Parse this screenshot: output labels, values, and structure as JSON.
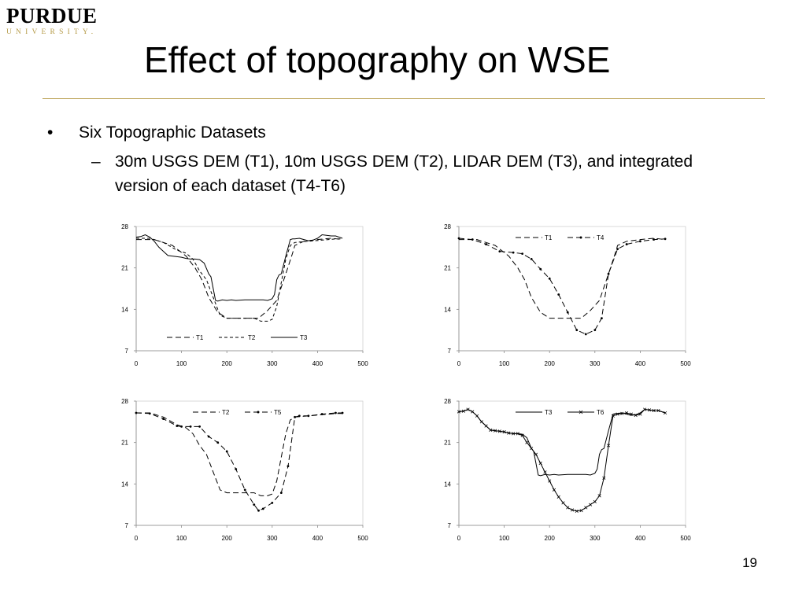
{
  "logo": {
    "word": "PURDUE",
    "sub": "UNIVERSITY."
  },
  "title": "Effect of topography on WSE",
  "bullets": {
    "level1_mark": "•",
    "level1": "Six Topographic Datasets",
    "level2_mark": "–",
    "level2": "30m USGS DEM (T1), 10m USGS DEM (T2), LIDAR DEM (T3), and integrated version of each dataset (T4-T6)"
  },
  "page_number": "19",
  "chart_data": [
    {
      "type": "line",
      "xlim": [
        0,
        500
      ],
      "ylim": [
        7,
        28
      ],
      "xticks": [
        0,
        100,
        200,
        300,
        400,
        500
      ],
      "yticks": [
        7,
        14,
        21,
        28
      ],
      "grid": false,
      "legend": "bottom-center",
      "series": [
        {
          "name": "T1",
          "style": "dash-long",
          "marker": "none",
          "x": [
            0,
            40,
            80,
            110,
            130,
            145,
            160,
            180,
            200,
            250,
            270,
            290,
            310,
            330,
            345,
            350,
            370,
            400,
            430,
            455
          ],
          "y": [
            25.8,
            25.8,
            24.8,
            23.0,
            21.0,
            19.0,
            16.0,
            13.5,
            12.5,
            12.5,
            12.5,
            13.8,
            15.5,
            20.0,
            23.5,
            24.8,
            25.5,
            25.8,
            26.0,
            25.8
          ]
        },
        {
          "name": "T2",
          "style": "dash-short",
          "marker": "none",
          "x": [
            0,
            30,
            60,
            90,
            110,
            125,
            140,
            155,
            170,
            185,
            200,
            230,
            260,
            275,
            290,
            300,
            310,
            320,
            330,
            340,
            350,
            380,
            410,
            440,
            455
          ],
          "y": [
            26.0,
            26.0,
            25.3,
            24.0,
            23.5,
            22.5,
            20.5,
            19.0,
            16.0,
            13.0,
            12.5,
            12.5,
            12.5,
            12.0,
            12.0,
            12.3,
            14.5,
            18.5,
            22.5,
            24.8,
            25.3,
            25.5,
            25.7,
            25.9,
            25.9
          ]
        },
        {
          "name": "T3",
          "style": "solid",
          "marker": "none",
          "x": [
            0,
            10,
            20,
            30,
            40,
            50,
            60,
            70,
            80,
            90,
            100,
            110,
            120,
            130,
            140,
            150,
            160,
            165,
            170,
            175,
            180,
            190,
            200,
            210,
            220,
            240,
            260,
            280,
            290,
            300,
            305,
            310,
            315,
            320,
            330,
            340,
            345,
            350,
            360,
            370,
            380,
            390,
            400,
            410,
            420,
            430,
            440,
            455
          ],
          "y": [
            26.2,
            26.3,
            26.6,
            26.2,
            25.5,
            24.5,
            23.8,
            23.1,
            23.0,
            22.9,
            22.8,
            22.6,
            22.5,
            22.5,
            22.4,
            21.8,
            20.0,
            19.5,
            17.5,
            15.5,
            15.4,
            15.6,
            15.5,
            15.6,
            15.5,
            15.6,
            15.6,
            15.6,
            15.5,
            15.8,
            16.5,
            19.0,
            19.8,
            20.0,
            23.0,
            25.8,
            25.9,
            25.9,
            26.0,
            25.8,
            25.6,
            25.7,
            26.0,
            26.6,
            26.5,
            26.4,
            26.4,
            26.0
          ]
        }
      ]
    },
    {
      "type": "line",
      "xlim": [
        0,
        500
      ],
      "ylim": [
        7,
        28
      ],
      "xticks": [
        0,
        100,
        200,
        300,
        400,
        500
      ],
      "yticks": [
        7,
        14,
        21,
        28
      ],
      "grid": false,
      "legend": "top-center",
      "series": [
        {
          "name": "T1",
          "style": "dash-long",
          "marker": "none",
          "x": [
            0,
            40,
            80,
            110,
            130,
            145,
            160,
            180,
            200,
            250,
            270,
            290,
            310,
            330,
            345,
            350,
            370,
            400,
            430,
            455
          ],
          "y": [
            25.8,
            25.8,
            24.8,
            23.0,
            21.0,
            19.0,
            16.0,
            13.5,
            12.5,
            12.5,
            12.5,
            13.8,
            15.5,
            20.0,
            23.5,
            24.8,
            25.5,
            25.8,
            26.0,
            25.8
          ]
        },
        {
          "name": "T4",
          "style": "dash-long",
          "marker": "dot",
          "x": [
            0,
            30,
            60,
            90,
            120,
            140,
            160,
            180,
            200,
            220,
            240,
            260,
            280,
            300,
            315,
            330,
            350,
            370,
            400,
            430,
            455
          ],
          "y": [
            26.0,
            25.8,
            25.0,
            23.8,
            23.6,
            23.4,
            22.5,
            20.8,
            19.2,
            16.5,
            13.5,
            10.5,
            9.8,
            10.5,
            12.5,
            20.0,
            24.2,
            25.0,
            25.5,
            25.8,
            25.9
          ]
        }
      ]
    },
    {
      "type": "line",
      "xlim": [
        0,
        500
      ],
      "ylim": [
        7,
        28
      ],
      "xticks": [
        0,
        100,
        200,
        300,
        400,
        500
      ],
      "yticks": [
        7,
        14,
        21,
        28
      ],
      "grid": false,
      "legend": "top-center",
      "series": [
        {
          "name": "T2",
          "style": "dash-long",
          "marker": "none",
          "x": [
            0,
            30,
            60,
            90,
            110,
            125,
            140,
            155,
            170,
            185,
            200,
            230,
            260,
            275,
            290,
            300,
            310,
            320,
            330,
            340,
            350,
            380,
            410,
            440,
            455
          ],
          "y": [
            26.0,
            26.0,
            25.3,
            24.0,
            23.5,
            22.5,
            20.5,
            19.0,
            16.0,
            13.0,
            12.5,
            12.5,
            12.5,
            12.0,
            12.0,
            12.3,
            14.5,
            18.5,
            22.5,
            24.8,
            25.3,
            25.5,
            25.7,
            25.9,
            25.9
          ]
        },
        {
          "name": "T5",
          "style": "dash-long",
          "marker": "dot",
          "x": [
            0,
            30,
            60,
            90,
            100,
            120,
            140,
            160,
            180,
            200,
            220,
            240,
            260,
            270,
            280,
            300,
            320,
            335,
            350,
            360,
            380,
            410,
            440,
            455
          ],
          "y": [
            26.0,
            25.9,
            25.0,
            23.8,
            23.7,
            23.7,
            23.7,
            22.0,
            21.0,
            19.5,
            16.5,
            13.0,
            10.5,
            9.5,
            9.8,
            10.8,
            12.5,
            17.0,
            25.3,
            25.5,
            25.5,
            25.8,
            26.0,
            26.0
          ]
        }
      ]
    },
    {
      "type": "line",
      "xlim": [
        0,
        500
      ],
      "ylim": [
        7,
        28
      ],
      "xticks": [
        0,
        100,
        200,
        300,
        400,
        500
      ],
      "yticks": [
        7,
        14,
        21,
        28
      ],
      "grid": false,
      "legend": "top-center",
      "series": [
        {
          "name": "T3",
          "style": "solid",
          "marker": "none",
          "x": [
            0,
            10,
            20,
            30,
            40,
            50,
            60,
            70,
            80,
            90,
            100,
            110,
            120,
            130,
            140,
            150,
            160,
            165,
            170,
            175,
            180,
            190,
            200,
            210,
            220,
            240,
            260,
            280,
            290,
            300,
            305,
            310,
            315,
            320,
            330,
            340,
            345,
            350,
            360,
            370,
            380,
            390,
            400,
            410,
            420,
            430,
            440,
            455
          ],
          "y": [
            26.2,
            26.3,
            26.6,
            26.2,
            25.5,
            24.5,
            23.8,
            23.1,
            23.0,
            22.9,
            22.8,
            22.6,
            22.5,
            22.5,
            22.4,
            21.8,
            20.0,
            19.5,
            17.5,
            15.5,
            15.4,
            15.6,
            15.5,
            15.6,
            15.5,
            15.6,
            15.6,
            15.6,
            15.5,
            15.8,
            16.5,
            19.0,
            19.8,
            20.0,
            23.0,
            25.8,
            25.9,
            25.9,
            26.0,
            25.8,
            25.6,
            25.7,
            26.0,
            26.6,
            26.5,
            26.4,
            26.4,
            26.0
          ]
        },
        {
          "name": "T6",
          "style": "solid",
          "marker": "cross",
          "x": [
            0,
            10,
            20,
            30,
            40,
            50,
            60,
            70,
            80,
            90,
            100,
            110,
            120,
            130,
            140,
            150,
            160,
            170,
            180,
            190,
            200,
            210,
            220,
            230,
            240,
            250,
            260,
            270,
            280,
            290,
            300,
            310,
            320,
            330,
            340,
            350,
            360,
            370,
            380,
            390,
            400,
            410,
            420,
            430,
            440,
            455
          ],
          "y": [
            26.2,
            26.3,
            26.6,
            26.2,
            25.5,
            24.5,
            23.8,
            23.1,
            23.0,
            22.9,
            22.8,
            22.6,
            22.5,
            22.5,
            22.2,
            21.0,
            20.0,
            19.0,
            17.5,
            16.0,
            14.5,
            13.0,
            11.8,
            10.8,
            10.0,
            9.6,
            9.4,
            9.5,
            10.0,
            10.5,
            11.0,
            12.0,
            15.0,
            20.5,
            25.5,
            25.8,
            25.9,
            26.0,
            25.8,
            25.6,
            25.8,
            26.6,
            26.5,
            26.4,
            26.4,
            26.0
          ]
        }
      ]
    }
  ]
}
